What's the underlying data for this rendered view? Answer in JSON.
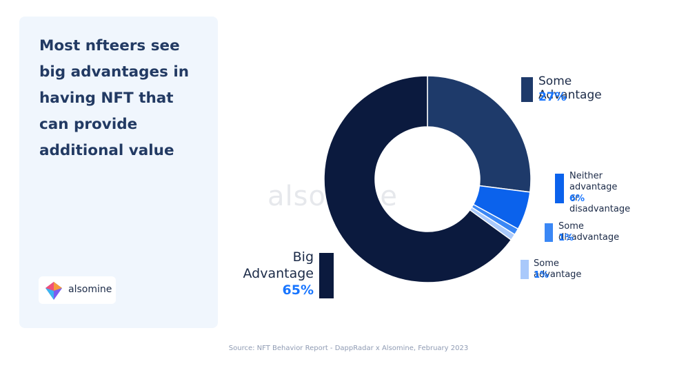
{
  "headline": "Most nfteers see\nbig advantages in\nhaving NFT that\ncan provide\nadditional value",
  "brand": {
    "name": "alsomine",
    "watermark": "alsomine"
  },
  "source": "Source: NFT Behavior Report - DappRadar x Alsomine, February 2023",
  "chart_data": {
    "type": "pie",
    "donut": true,
    "title": "",
    "categories": [
      "Some Advantage",
      "Neither advantage or disadvantage",
      "Some disadvantage",
      "Some advantage",
      "Big Advantage"
    ],
    "values": [
      27,
      6,
      1,
      1,
      65
    ],
    "value_labels": [
      "27%",
      "6%",
      "1%",
      "1%",
      "65%"
    ],
    "colors": [
      "#1e3a6a",
      "#0b62ec",
      "#3a87f5",
      "#a9c9fb",
      "#0b1a3e"
    ],
    "legend_display": [
      "Some Advantage",
      "Neither advantage\nor disadvantage",
      "Some disadvantage",
      "Some advantage",
      "Big\nAdvantage"
    ]
  }
}
